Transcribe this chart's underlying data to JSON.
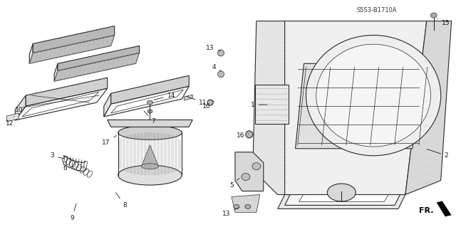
{
  "background_color": "#ffffff",
  "diagram_code": "S5S3-B1710A",
  "direction_label": "FR.",
  "line_color": "#2a2a2a",
  "label_fontsize": 6.5,
  "text_color": "#1a1a1a",
  "figsize": [
    6.4,
    3.19
  ],
  "dpi": 100,
  "hatch_color": "#888888",
  "gray_fill": "#d8d8d8",
  "light_fill": "#f0f0f0"
}
